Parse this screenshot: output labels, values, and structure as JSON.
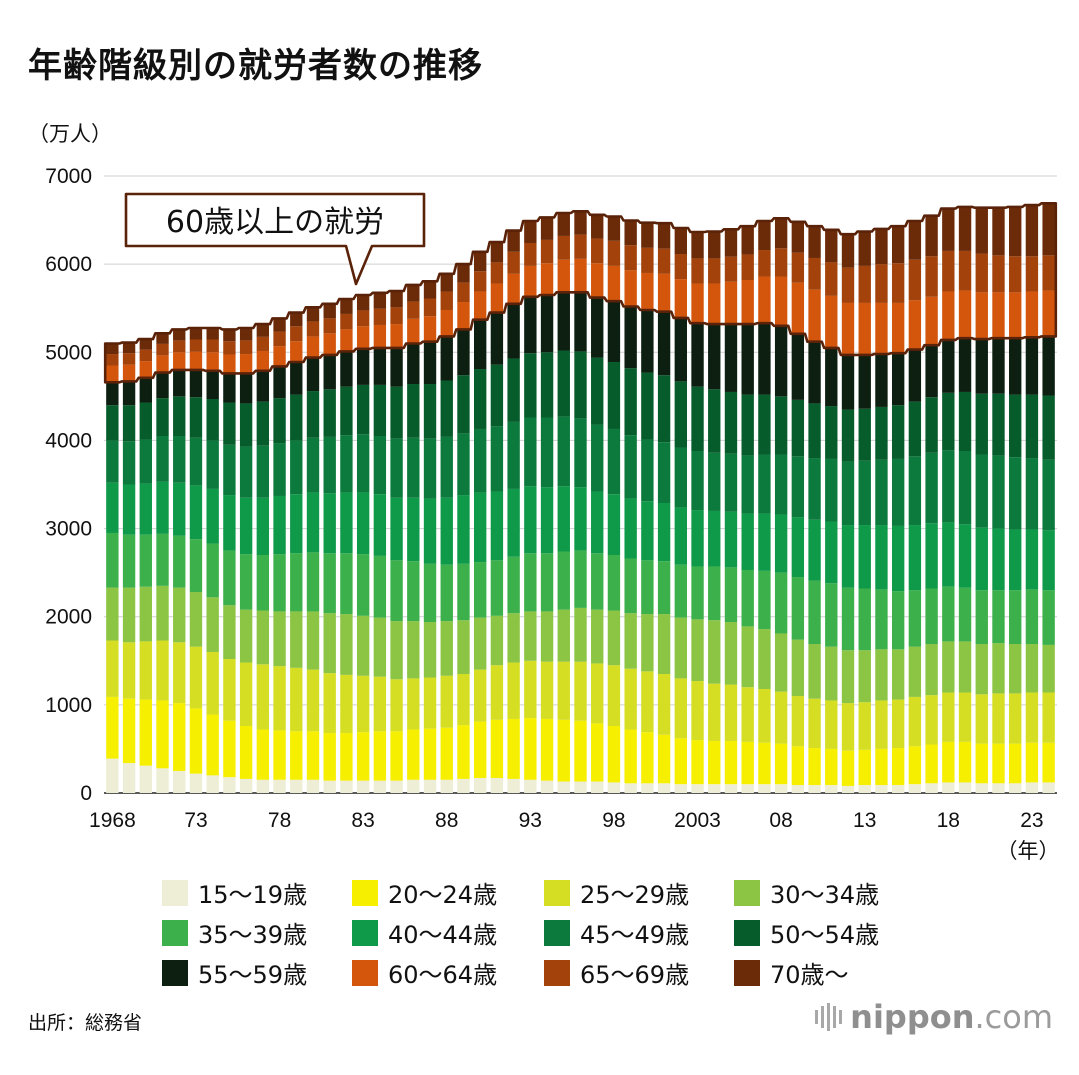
{
  "title": "年齢階級別の就労者数の推移",
  "unit_label": "（万人）",
  "source": "出所：総務省",
  "logo": {
    "brand": "nippon",
    "suffix": ".com"
  },
  "callout": "60歳以上の就労",
  "chart_data": {
    "type": "bar",
    "stacked": true,
    "years": [
      1968,
      1969,
      1970,
      1971,
      1972,
      1973,
      1974,
      1975,
      1976,
      1977,
      1978,
      1979,
      1980,
      1981,
      1982,
      1983,
      1984,
      1985,
      1986,
      1987,
      1988,
      1989,
      1990,
      1991,
      1992,
      1993,
      1994,
      1995,
      1996,
      1997,
      1998,
      1999,
      2000,
      2001,
      2002,
      2003,
      2004,
      2005,
      2006,
      2007,
      2008,
      2009,
      2010,
      2011,
      2012,
      2013,
      2014,
      2015,
      2016,
      2017,
      2018,
      2019,
      2020,
      2021,
      2022,
      2023,
      2024
    ],
    "x_tick_labels": [
      {
        "year": 1968,
        "label": "1968"
      },
      {
        "year": 1973,
        "label": "73"
      },
      {
        "year": 1978,
        "label": "78"
      },
      {
        "year": 1983,
        "label": "83"
      },
      {
        "year": 1988,
        "label": "88"
      },
      {
        "year": 1993,
        "label": "93"
      },
      {
        "year": 1998,
        "label": "98"
      },
      {
        "year": 2003,
        "label": "2003"
      },
      {
        "year": 2008,
        "label": "08"
      },
      {
        "year": 2013,
        "label": "13"
      },
      {
        "year": 2018,
        "label": "18"
      },
      {
        "year": 2023,
        "label": "23"
      }
    ],
    "x_unit": "（年）",
    "y_ticks": [
      0,
      1000,
      2000,
      3000,
      4000,
      5000,
      6000,
      7000
    ],
    "ylim": [
      0,
      7000
    ],
    "grid": true,
    "callout_threshold_label": "60歳以上の就労",
    "series": [
      {
        "name": "15〜19歳",
        "color": "#eeeed6",
        "values": [
          390,
          340,
          310,
          280,
          250,
          220,
          200,
          180,
          160,
          150,
          150,
          150,
          150,
          140,
          140,
          140,
          140,
          140,
          150,
          150,
          150,
          160,
          170,
          170,
          160,
          150,
          140,
          130,
          130,
          130,
          120,
          110,
          110,
          110,
          100,
          100,
          100,
          100,
          100,
          100,
          100,
          90,
          90,
          90,
          80,
          90,
          90,
          90,
          100,
          110,
          120,
          120,
          110,
          110,
          110,
          120,
          120
        ]
      },
      {
        "name": "20〜24歳",
        "color": "#f6ef00",
        "values": [
          700,
          730,
          750,
          770,
          770,
          740,
          690,
          640,
          600,
          570,
          560,
          550,
          550,
          540,
          540,
          550,
          560,
          560,
          570,
          580,
          590,
          610,
          640,
          660,
          680,
          700,
          700,
          700,
          690,
          660,
          640,
          610,
          580,
          550,
          520,
          500,
          490,
          490,
          480,
          470,
          460,
          440,
          420,
          410,
          400,
          400,
          410,
          420,
          430,
          440,
          460,
          460,
          450,
          450,
          450,
          450,
          450
        ]
      },
      {
        "name": "25〜29歳",
        "color": "#d6de24",
        "values": [
          640,
          640,
          660,
          680,
          690,
          700,
          710,
          700,
          720,
          740,
          730,
          720,
          700,
          680,
          660,
          640,
          620,
          590,
          580,
          580,
          590,
          580,
          590,
          620,
          640,
          650,
          650,
          660,
          670,
          680,
          690,
          690,
          690,
          690,
          680,
          670,
          650,
          640,
          620,
          610,
          590,
          570,
          560,
          550,
          540,
          540,
          550,
          550,
          560,
          560,
          560,
          560,
          560,
          570,
          570,
          570,
          570
        ]
      },
      {
        "name": "30〜34歳",
        "color": "#8cc444",
        "values": [
          600,
          620,
          620,
          620,
          620,
          620,
          620,
          610,
          600,
          610,
          620,
          640,
          660,
          680,
          690,
          680,
          670,
          660,
          650,
          630,
          620,
          610,
          590,
          560,
          560,
          560,
          570,
          590,
          610,
          610,
          620,
          630,
          650,
          680,
          690,
          700,
          720,
          710,
          690,
          680,
          660,
          640,
          620,
          610,
          600,
          590,
          580,
          570,
          570,
          580,
          580,
          580,
          570,
          570,
          560,
          550,
          540
        ]
      },
      {
        "name": "35〜39歳",
        "color": "#3cb04a",
        "values": [
          620,
          600,
          590,
          590,
          590,
          600,
          610,
          620,
          630,
          630,
          650,
          660,
          670,
          680,
          690,
          700,
          700,
          690,
          680,
          660,
          640,
          640,
          630,
          630,
          640,
          660,
          660,
          660,
          650,
          640,
          630,
          620,
          610,
          600,
          600,
          600,
          610,
          620,
          640,
          660,
          690,
          710,
          720,
          720,
          710,
          700,
          680,
          660,
          640,
          630,
          620,
          610,
          610,
          600,
          610,
          620,
          620
        ]
      },
      {
        "name": "40〜44歳",
        "color": "#0f9a4a",
        "values": [
          570,
          570,
          580,
          590,
          600,
          610,
          620,
          630,
          640,
          650,
          660,
          670,
          680,
          680,
          690,
          700,
          700,
          710,
          720,
          740,
          760,
          780,
          790,
          780,
          770,
          760,
          750,
          740,
          720,
          700,
          690,
          680,
          670,
          660,
          650,
          640,
          630,
          630,
          640,
          650,
          660,
          680,
          690,
          700,
          710,
          720,
          730,
          740,
          740,
          740,
          730,
          720,
          710,
          700,
          690,
          680,
          680
        ]
      },
      {
        "name": "45〜49歳",
        "color": "#0b7a3c",
        "values": [
          480,
          490,
          500,
          520,
          530,
          540,
          550,
          570,
          580,
          590,
          600,
          610,
          620,
          640,
          650,
          660,
          660,
          670,
          680,
          680,
          690,
          700,
          720,
          740,
          760,
          780,
          790,
          790,
          780,
          760,
          740,
          720,
          700,
          690,
          680,
          670,
          660,
          660,
          660,
          670,
          680,
          690,
          700,
          710,
          720,
          730,
          740,
          760,
          780,
          800,
          820,
          830,
          830,
          830,
          820,
          810,
          800
        ]
      },
      {
        "name": "50〜54歳",
        "color": "#075c2c",
        "values": [
          400,
          410,
          420,
          430,
          450,
          460,
          470,
          480,
          490,
          500,
          510,
          520,
          530,
          540,
          550,
          560,
          580,
          590,
          610,
          620,
          640,
          660,
          680,
          700,
          720,
          730,
          740,
          750,
          760,
          760,
          760,
          760,
          760,
          760,
          750,
          730,
          720,
          700,
          690,
          680,
          660,
          640,
          620,
          600,
          590,
          590,
          600,
          610,
          620,
          630,
          650,
          670,
          690,
          700,
          710,
          720,
          730
        ]
      },
      {
        "name": "55〜59歳",
        "color": "#0c1f10",
        "values": [
          260,
          270,
          280,
          290,
          300,
          310,
          320,
          330,
          340,
          350,
          360,
          370,
          380,
          390,
          400,
          410,
          420,
          440,
          460,
          480,
          500,
          520,
          560,
          590,
          620,
          640,
          650,
          660,
          670,
          680,
          690,
          700,
          710,
          720,
          720,
          720,
          740,
          770,
          800,
          810,
          800,
          750,
          700,
          660,
          620,
          610,
          600,
          590,
          590,
          590,
          600,
          610,
          620,
          630,
          640,
          650,
          670
        ]
      },
      {
        "name": "60〜64歳",
        "color": "#d4560d",
        "values": [
          190,
          190,
          190,
          195,
          200,
          205,
          210,
          215,
          220,
          225,
          230,
          235,
          240,
          245,
          250,
          255,
          260,
          270,
          280,
          290,
          300,
          310,
          320,
          330,
          340,
          350,
          360,
          370,
          380,
          390,
          400,
          410,
          420,
          430,
          440,
          450,
          460,
          480,
          500,
          530,
          560,
          580,
          590,
          590,
          590,
          590,
          580,
          570,
          560,
          550,
          550,
          540,
          530,
          520,
          520,
          520,
          520
        ]
      },
      {
        "name": "65〜69歳",
        "color": "#a3420a",
        "values": [
          130,
          130,
          130,
          130,
          135,
          140,
          145,
          150,
          155,
          160,
          165,
          170,
          170,
          170,
          175,
          180,
          185,
          190,
          195,
          200,
          210,
          220,
          230,
          240,
          250,
          260,
          265,
          270,
          275,
          280,
          285,
          285,
          285,
          285,
          285,
          285,
          285,
          285,
          290,
          300,
          320,
          340,
          360,
          380,
          400,
          420,
          440,
          450,
          460,
          460,
          460,
          450,
          440,
          420,
          410,
          400,
          400
        ]
      },
      {
        "name": "70歳〜",
        "color": "#6b2a08",
        "values": [
          120,
          120,
          120,
          120,
          125,
          130,
          130,
          135,
          140,
          145,
          150,
          155,
          160,
          165,
          170,
          175,
          180,
          185,
          190,
          195,
          200,
          210,
          220,
          230,
          240,
          250,
          255,
          260,
          265,
          270,
          275,
          280,
          285,
          290,
          295,
          300,
          305,
          310,
          320,
          330,
          340,
          350,
          360,
          370,
          380,
          390,
          400,
          420,
          440,
          460,
          480,
          500,
          520,
          540,
          560,
          580,
          590
        ]
      }
    ]
  }
}
